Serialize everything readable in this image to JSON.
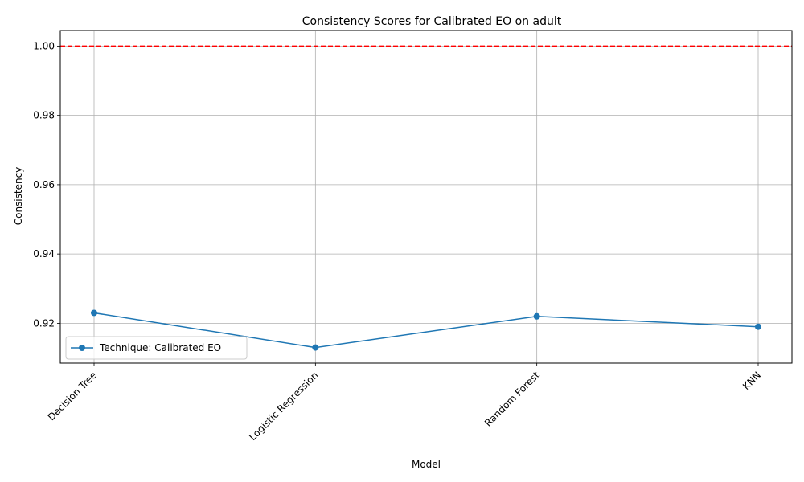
{
  "chart_data": {
    "type": "line",
    "title": "Consistency Scores for Calibrated EO on adult",
    "xlabel": "Model",
    "ylabel": "Consistency",
    "categories": [
      "Decision Tree",
      "Logistic Regression",
      "Random Forest",
      "KNN"
    ],
    "series": [
      {
        "name": "Technique: Calibrated EO",
        "values": [
          0.923,
          0.913,
          0.922,
          0.919
        ],
        "color": "#1f77b4",
        "marker": "circle"
      }
    ],
    "reference_line": {
      "y": 1.0,
      "color": "#ff0000",
      "style": "dashed"
    },
    "ylim": [
      0.9085,
      1.0045
    ],
    "yticks": [
      0.92,
      0.94,
      0.96,
      0.98,
      1.0
    ],
    "ytick_labels": [
      "0.92",
      "0.94",
      "0.96",
      "0.98",
      "1.00"
    ],
    "grid": true,
    "legend_position": "lower-left",
    "xtick_rotation": "45"
  }
}
